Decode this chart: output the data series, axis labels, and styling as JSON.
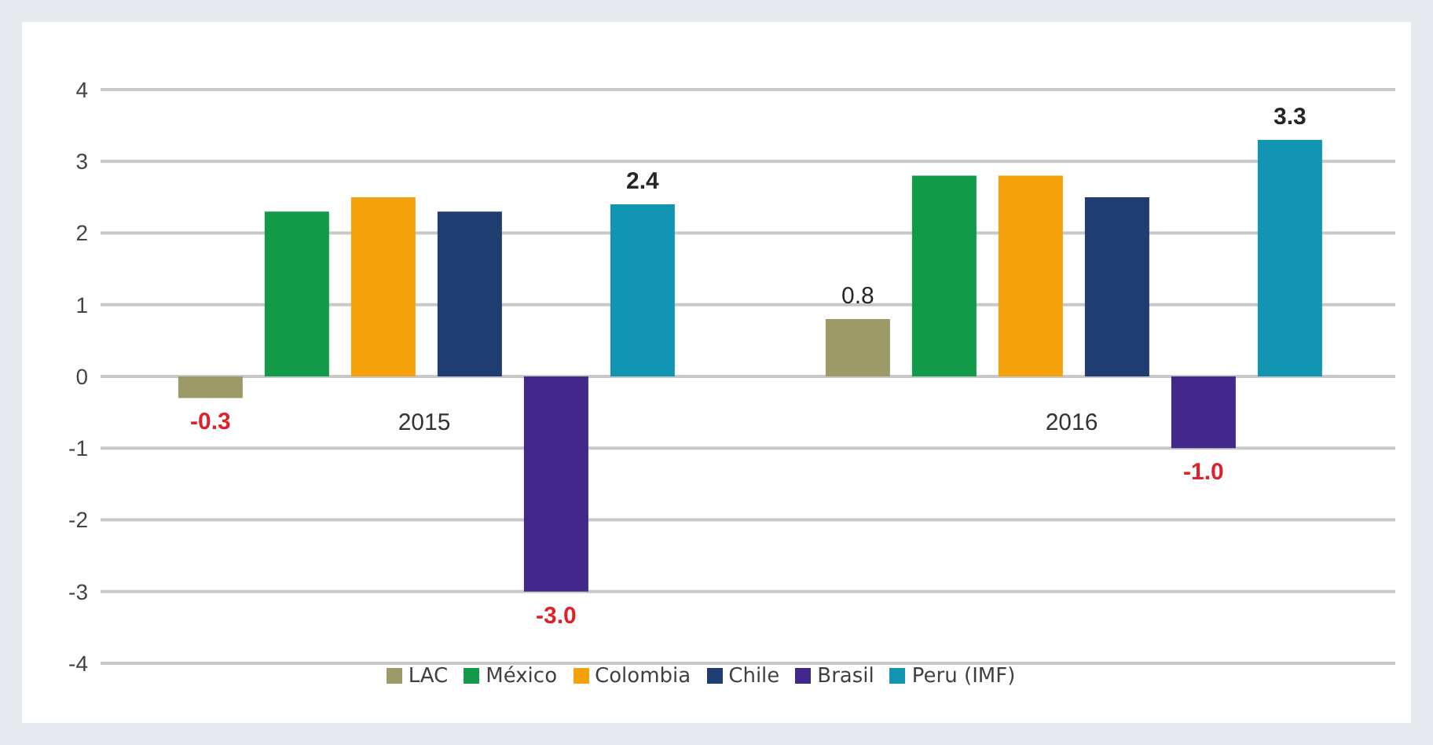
{
  "chart_data": {
    "type": "bar",
    "categories": [
      "2015",
      "2016"
    ],
    "series": [
      {
        "name": "LAC",
        "color": "#9c9a68",
        "values": [
          -0.3,
          0.8
        ],
        "value_labels": [
          "-0.3",
          "0.8"
        ]
      },
      {
        "name": "México",
        "color": "#139a48",
        "values": [
          2.3,
          2.8
        ]
      },
      {
        "name": "Colombia",
        "color": "#f4a20c",
        "values": [
          2.5,
          2.8
        ]
      },
      {
        "name": "Chile",
        "color": "#1f3d70",
        "values": [
          2.3,
          2.5
        ]
      },
      {
        "name": "Brasil",
        "color": "#41288a",
        "values": [
          -3.0,
          -1.0
        ],
        "value_labels": [
          "-3.0",
          "-1.0"
        ]
      },
      {
        "name": "Peru (IMF)",
        "color": "#1295b2",
        "values": [
          2.4,
          3.3
        ],
        "value_labels": [
          "2.4",
          "3.3"
        ]
      }
    ],
    "ylim": [
      -4,
      4
    ],
    "yticks": [
      -4,
      -3,
      -2,
      -1,
      0,
      1,
      2,
      3,
      4
    ],
    "grid": "y",
    "legend": "bottom"
  }
}
